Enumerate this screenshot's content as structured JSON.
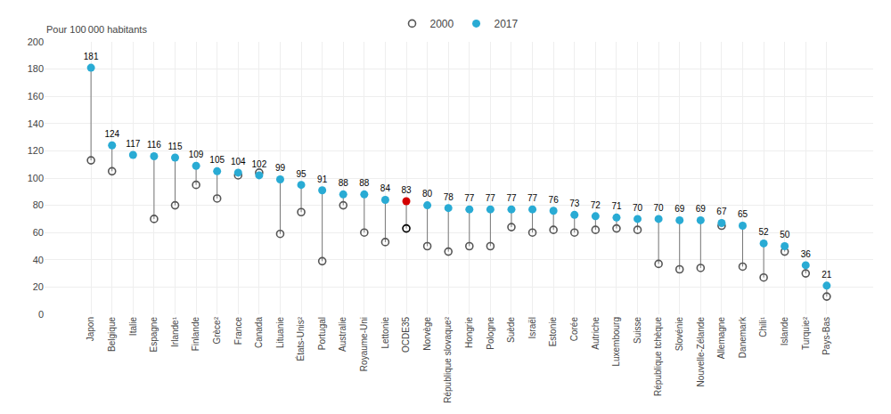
{
  "chart_data": {
    "type": "dumbbell",
    "ylabel": "Pour 100 000 habitants",
    "categories": [
      "Japon",
      "Belgique",
      "Italie",
      "Espagne",
      "Irlande¹",
      "Finlande",
      "Grèce²",
      "France",
      "Canada",
      "Lituanie",
      "États-Unis²",
      "Portugal",
      "Australie",
      "Royaume-Uni",
      "Lettonie",
      "OCDE35",
      "Norvège",
      "République slovaque²",
      "Hongrie",
      "Pologne",
      "Suède",
      "Israël",
      "Estonie",
      "Corée",
      "Autriche",
      "Luxembourg",
      "Suisse",
      "République tchèque",
      "Slovénie",
      "Nouvelle-Zélande",
      "Allemagne",
      "Danemark",
      "Chili¹",
      "Islande",
      "Turquie²",
      "Pays-Bas"
    ],
    "series": [
      {
        "name": "2000",
        "marker": "circle-open",
        "colors": [
          "#555555",
          "#555555",
          "#555555",
          "#555555",
          "#555555",
          "#555555",
          "#555555",
          "#555555",
          "#555555",
          "#555555",
          "#555555",
          "#555555",
          "#555555",
          "#555555",
          "#555555",
          "#000000",
          "#555555",
          "#555555",
          "#555555",
          "#555555",
          "#555555",
          "#555555",
          "#555555",
          "#555555",
          "#555555",
          "#555555",
          "#555555",
          "#555555",
          "#555555",
          "#555555",
          "#555555",
          "#555555",
          "#555555",
          "#555555",
          "#555555",
          "#555555"
        ],
        "values": [
          113,
          105,
          null,
          70,
          80,
          95,
          85,
          102,
          104,
          59,
          75,
          39,
          80,
          60,
          53,
          63,
          50,
          46,
          50,
          50,
          64,
          60,
          62,
          60,
          62,
          63,
          62,
          37,
          33,
          34,
          65,
          35,
          27,
          46,
          30,
          13
        ]
      },
      {
        "name": "2017",
        "marker": "circle",
        "data_labels": true,
        "colors": [
          "#29ABD4",
          "#29ABD4",
          "#29ABD4",
          "#29ABD4",
          "#29ABD4",
          "#29ABD4",
          "#29ABD4",
          "#29ABD4",
          "#29ABD4",
          "#29ABD4",
          "#29ABD4",
          "#29ABD4",
          "#29ABD4",
          "#29ABD4",
          "#29ABD4",
          "#D40000",
          "#29ABD4",
          "#29ABD4",
          "#29ABD4",
          "#29ABD4",
          "#29ABD4",
          "#29ABD4",
          "#29ABD4",
          "#29ABD4",
          "#29ABD4",
          "#29ABD4",
          "#29ABD4",
          "#29ABD4",
          "#29ABD4",
          "#29ABD4",
          "#29ABD4",
          "#29ABD4",
          "#29ABD4",
          "#29ABD4",
          "#29ABD4",
          "#29ABD4"
        ],
        "values": [
          181,
          124,
          117,
          116,
          115,
          109,
          105,
          104,
          102,
          99,
          95,
          91,
          88,
          88,
          84,
          83,
          80,
          78,
          77,
          77,
          77,
          77,
          76,
          73,
          72,
          71,
          70,
          70,
          69,
          69,
          67,
          65,
          52,
          50,
          36,
          21
        ]
      }
    ],
    "ylim": [
      0,
      200
    ],
    "yticks": [
      0,
      20,
      40,
      60,
      80,
      100,
      120,
      140,
      160,
      180,
      200
    ],
    "grid": true,
    "legend": "top"
  }
}
